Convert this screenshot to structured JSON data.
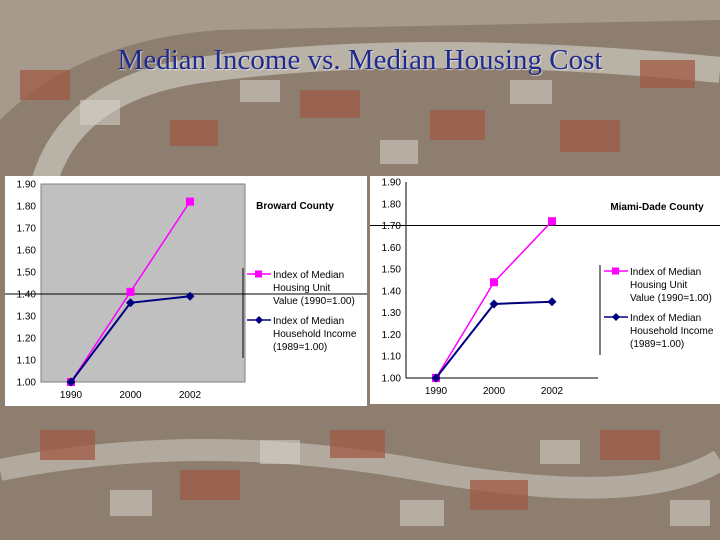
{
  "slide": {
    "title": "Median Income vs. Median Housing Cost"
  },
  "colors": {
    "housing_series": "#ff00ff",
    "income_series": "#000080",
    "plot_background": "#c0c0c0",
    "title": "#1e2a8c"
  },
  "chart_data": [
    {
      "type": "line",
      "title": "Broward County",
      "categories": [
        "1990",
        "2000",
        "2002"
      ],
      "y_ticks": [
        "1.00",
        "1.10",
        "1.20",
        "1.30",
        "1.40",
        "1.50",
        "1.60",
        "1.70",
        "1.80",
        "1.90"
      ],
      "ylim": [
        1.0,
        1.9
      ],
      "reference_line": 1.4,
      "grid": false,
      "legend_position": "right",
      "series": [
        {
          "name_lines": [
            "Index of Median",
            "Housing Unit",
            "Value (1990=1.00)"
          ],
          "values": [
            1.0,
            1.41,
            1.82
          ]
        },
        {
          "name_lines": [
            "Index of Median",
            "Household Income",
            "(1989=1.00)"
          ],
          "values": [
            1.0,
            1.36,
            1.39
          ]
        }
      ]
    },
    {
      "type": "line",
      "title": "Miami-Dade County",
      "categories": [
        "1990",
        "2000",
        "2002"
      ],
      "y_ticks": [
        "1.00",
        "1.10",
        "1.20",
        "1.30",
        "1.40",
        "1.50",
        "1.60",
        "1.70",
        "1.80",
        "1.90"
      ],
      "ylim": [
        1.0,
        1.9
      ],
      "reference_line": 1.7,
      "grid": false,
      "legend_position": "right",
      "series": [
        {
          "name_lines": [
            "Index of Median",
            "Housing Unit",
            "Value (1990=1.00)"
          ],
          "values": [
            1.0,
            1.44,
            1.72
          ]
        },
        {
          "name_lines": [
            "Index of Median",
            "Household Income",
            "(1989=1.00)"
          ],
          "values": [
            1.0,
            1.34,
            1.35
          ]
        }
      ]
    }
  ]
}
